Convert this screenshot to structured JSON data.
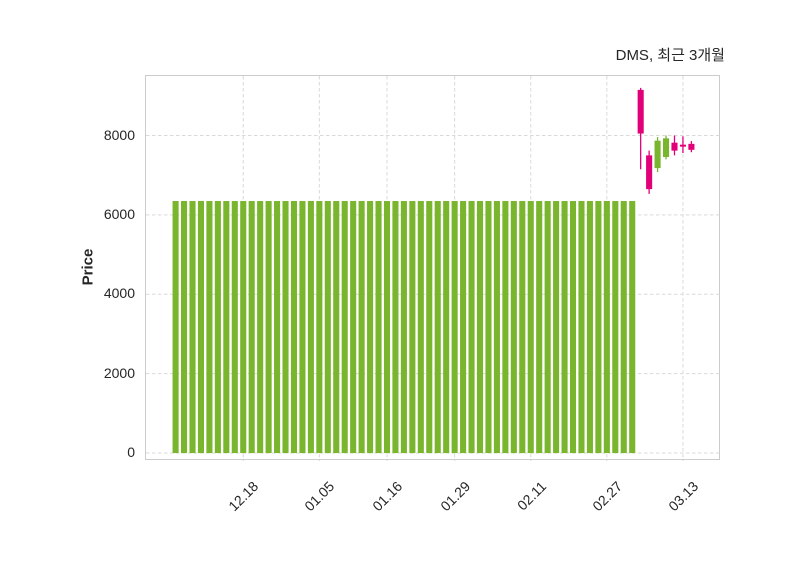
{
  "figure": {
    "title": "DMS, 최근 3개월"
  },
  "chart_data": {
    "type": "candlestick",
    "title": "DMS, 최근 3개월",
    "ylabel": "Price",
    "xlabel": "",
    "grid": true,
    "legend": false,
    "grid_style": "dashed",
    "ylim": [
      -200,
      9500
    ],
    "xlim": [
      -3.5,
      64.5
    ],
    "yticks": [
      0,
      2000,
      4000,
      6000,
      8000
    ],
    "xticks": [
      {
        "index": 8,
        "label": "12.18"
      },
      {
        "index": 17,
        "label": "01.05"
      },
      {
        "index": 25,
        "label": "01.16"
      },
      {
        "index": 33,
        "label": "01.29"
      },
      {
        "index": 42,
        "label": "02.11"
      },
      {
        "index": 51,
        "label": "02.27"
      },
      {
        "index": 60,
        "label": "03.13"
      }
    ],
    "colors": {
      "up": "#e20079",
      "down": "#7ab52e",
      "grid": "#d9d9d9",
      "spine": "#cccccc",
      "text": "#262626",
      "background": "#ffffff"
    },
    "flat_candles": {
      "from_index": 0,
      "to_index": 54,
      "open": 6350,
      "high": 6350,
      "low": 0,
      "close": 0
    },
    "candles": [
      {
        "i": 55,
        "open": 8050,
        "high": 9200,
        "low": 7150,
        "close": 9150
      },
      {
        "i": 56,
        "open": 6650,
        "high": 7620,
        "low": 6530,
        "close": 7500
      },
      {
        "i": 57,
        "open": 7870,
        "high": 7960,
        "low": 7080,
        "close": 7180
      },
      {
        "i": 58,
        "open": 7930,
        "high": 8000,
        "low": 7400,
        "close": 7460
      },
      {
        "i": 59,
        "open": 7620,
        "high": 8000,
        "low": 7500,
        "close": 7820
      },
      {
        "i": 60,
        "open": 7720,
        "high": 7980,
        "low": 7560,
        "close": 7770
      },
      {
        "i": 61,
        "open": 7640,
        "high": 7860,
        "low": 7580,
        "close": 7790
      }
    ]
  }
}
